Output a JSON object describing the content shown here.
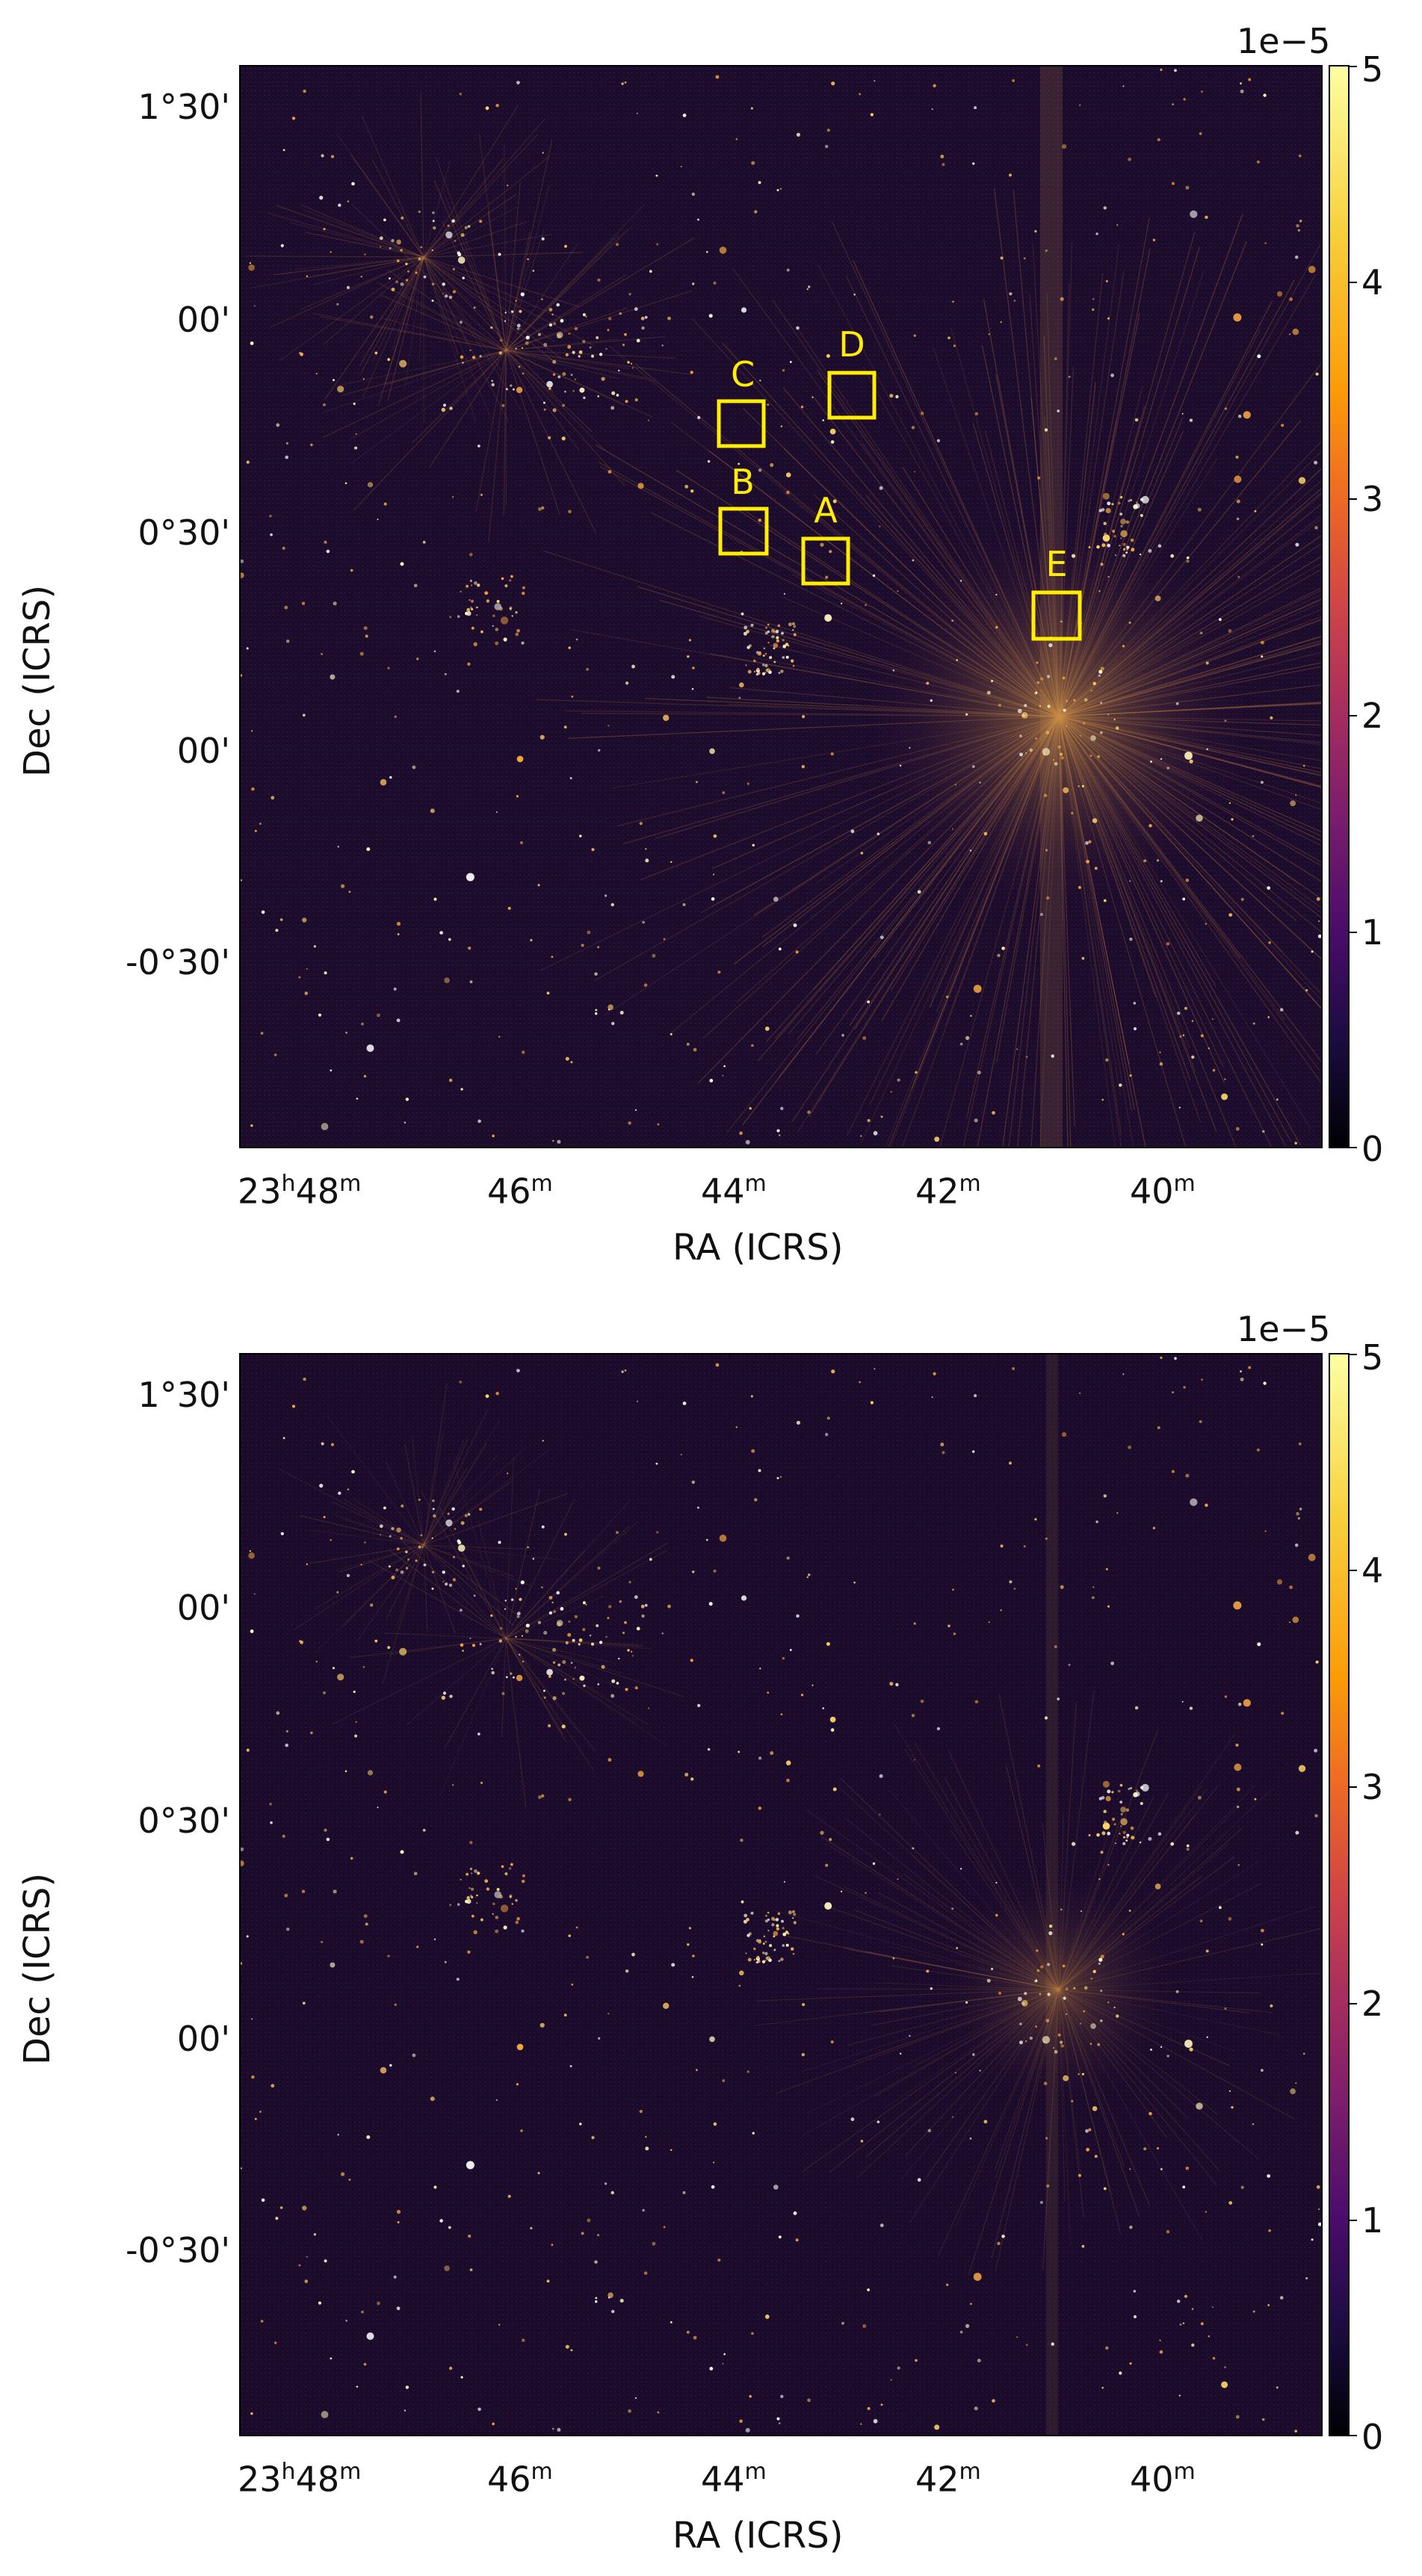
{
  "panels": [
    {
      "y_ticks": [
        "1°30'",
        "00'",
        "0°30'",
        "00'",
        "-0°30'"
      ],
      "x_ticks": [
        {
          "main": "23",
          "sup1": "h",
          "mid": "48",
          "sup2": "m"
        },
        {
          "main": "46",
          "sup2": "m"
        },
        {
          "main": "44",
          "sup2": "m"
        },
        {
          "main": "42",
          "sup2": "m"
        },
        {
          "main": "40",
          "sup2": "m"
        }
      ],
      "xlabel": "RA (ICRS)",
      "ylabel": "Dec (ICRS)",
      "colorbar": {
        "exponent": "1e−5",
        "ticks": [
          "5",
          "4",
          "3",
          "2",
          "1",
          "0"
        ]
      },
      "regions": [
        {
          "label": "C"
        },
        {
          "label": "D"
        },
        {
          "label": "B"
        },
        {
          "label": "A"
        },
        {
          "label": "E"
        }
      ]
    },
    {
      "y_ticks": [
        "1°30'",
        "00'",
        "0°30'",
        "00'",
        "-0°30'"
      ],
      "x_ticks": [
        {
          "main": "23",
          "sup1": "h",
          "mid": "48",
          "sup2": "m"
        },
        {
          "main": "46",
          "sup2": "m"
        },
        {
          "main": "44",
          "sup2": "m"
        },
        {
          "main": "42",
          "sup2": "m"
        },
        {
          "main": "40",
          "sup2": "m"
        }
      ],
      "xlabel": "RA (ICRS)",
      "ylabel": "Dec (ICRS)",
      "colorbar": {
        "exponent": "1e−5",
        "ticks": [
          "5",
          "4",
          "3",
          "2",
          "1",
          "0"
        ]
      }
    }
  ],
  "colors": {
    "background_sky": "#1a0b2a",
    "region_box": "#ffee00",
    "source": "#fff6c0"
  }
}
